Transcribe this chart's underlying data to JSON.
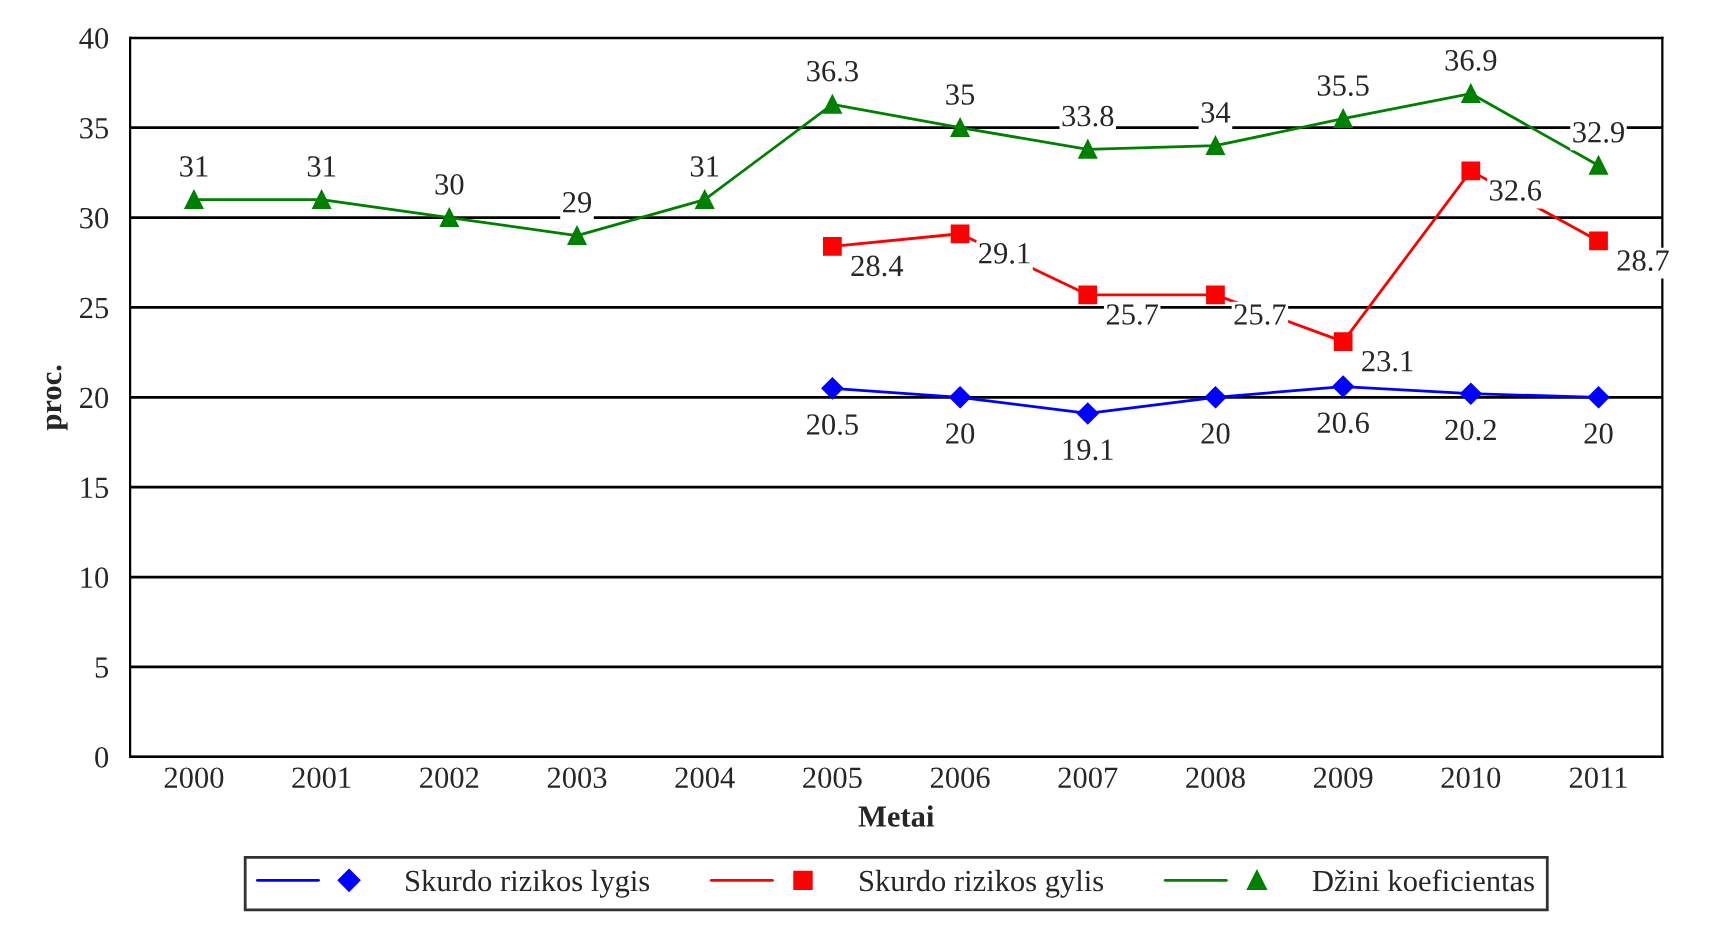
{
  "chart_data": {
    "type": "line",
    "xlabel": "Metai",
    "ylabel": "proc.",
    "categories": [
      "2000",
      "2001",
      "2002",
      "2003",
      "2004",
      "2005",
      "2006",
      "2007",
      "2008",
      "2009",
      "2010",
      "2011"
    ],
    "series": [
      {
        "name": "Skurdo rizikos lygis",
        "color": "#0000ff",
        "marker": "diamond",
        "values": [
          null,
          null,
          null,
          null,
          null,
          20.5,
          20,
          19.1,
          20,
          20.6,
          20.2,
          20
        ]
      },
      {
        "name": "Skurdo rizikos gylis",
        "color": "#ff0000",
        "marker": "square",
        "values": [
          null,
          null,
          null,
          null,
          null,
          28.4,
          29.1,
          25.7,
          25.7,
          23.1,
          32.6,
          28.7
        ]
      },
      {
        "name": "Džini koeficientas",
        "color": "#008000",
        "marker": "triangle",
        "values": [
          31,
          31,
          30,
          29,
          31,
          36.3,
          35,
          33.8,
          34,
          35.5,
          36.9,
          32.9
        ]
      }
    ],
    "ylim": [
      0,
      40
    ],
    "yticks": [
      0,
      5,
      10,
      15,
      20,
      25,
      30,
      35,
      40
    ],
    "grid": "y",
    "legend": "bottom",
    "data_labels": true,
    "line_style": "solid"
  }
}
